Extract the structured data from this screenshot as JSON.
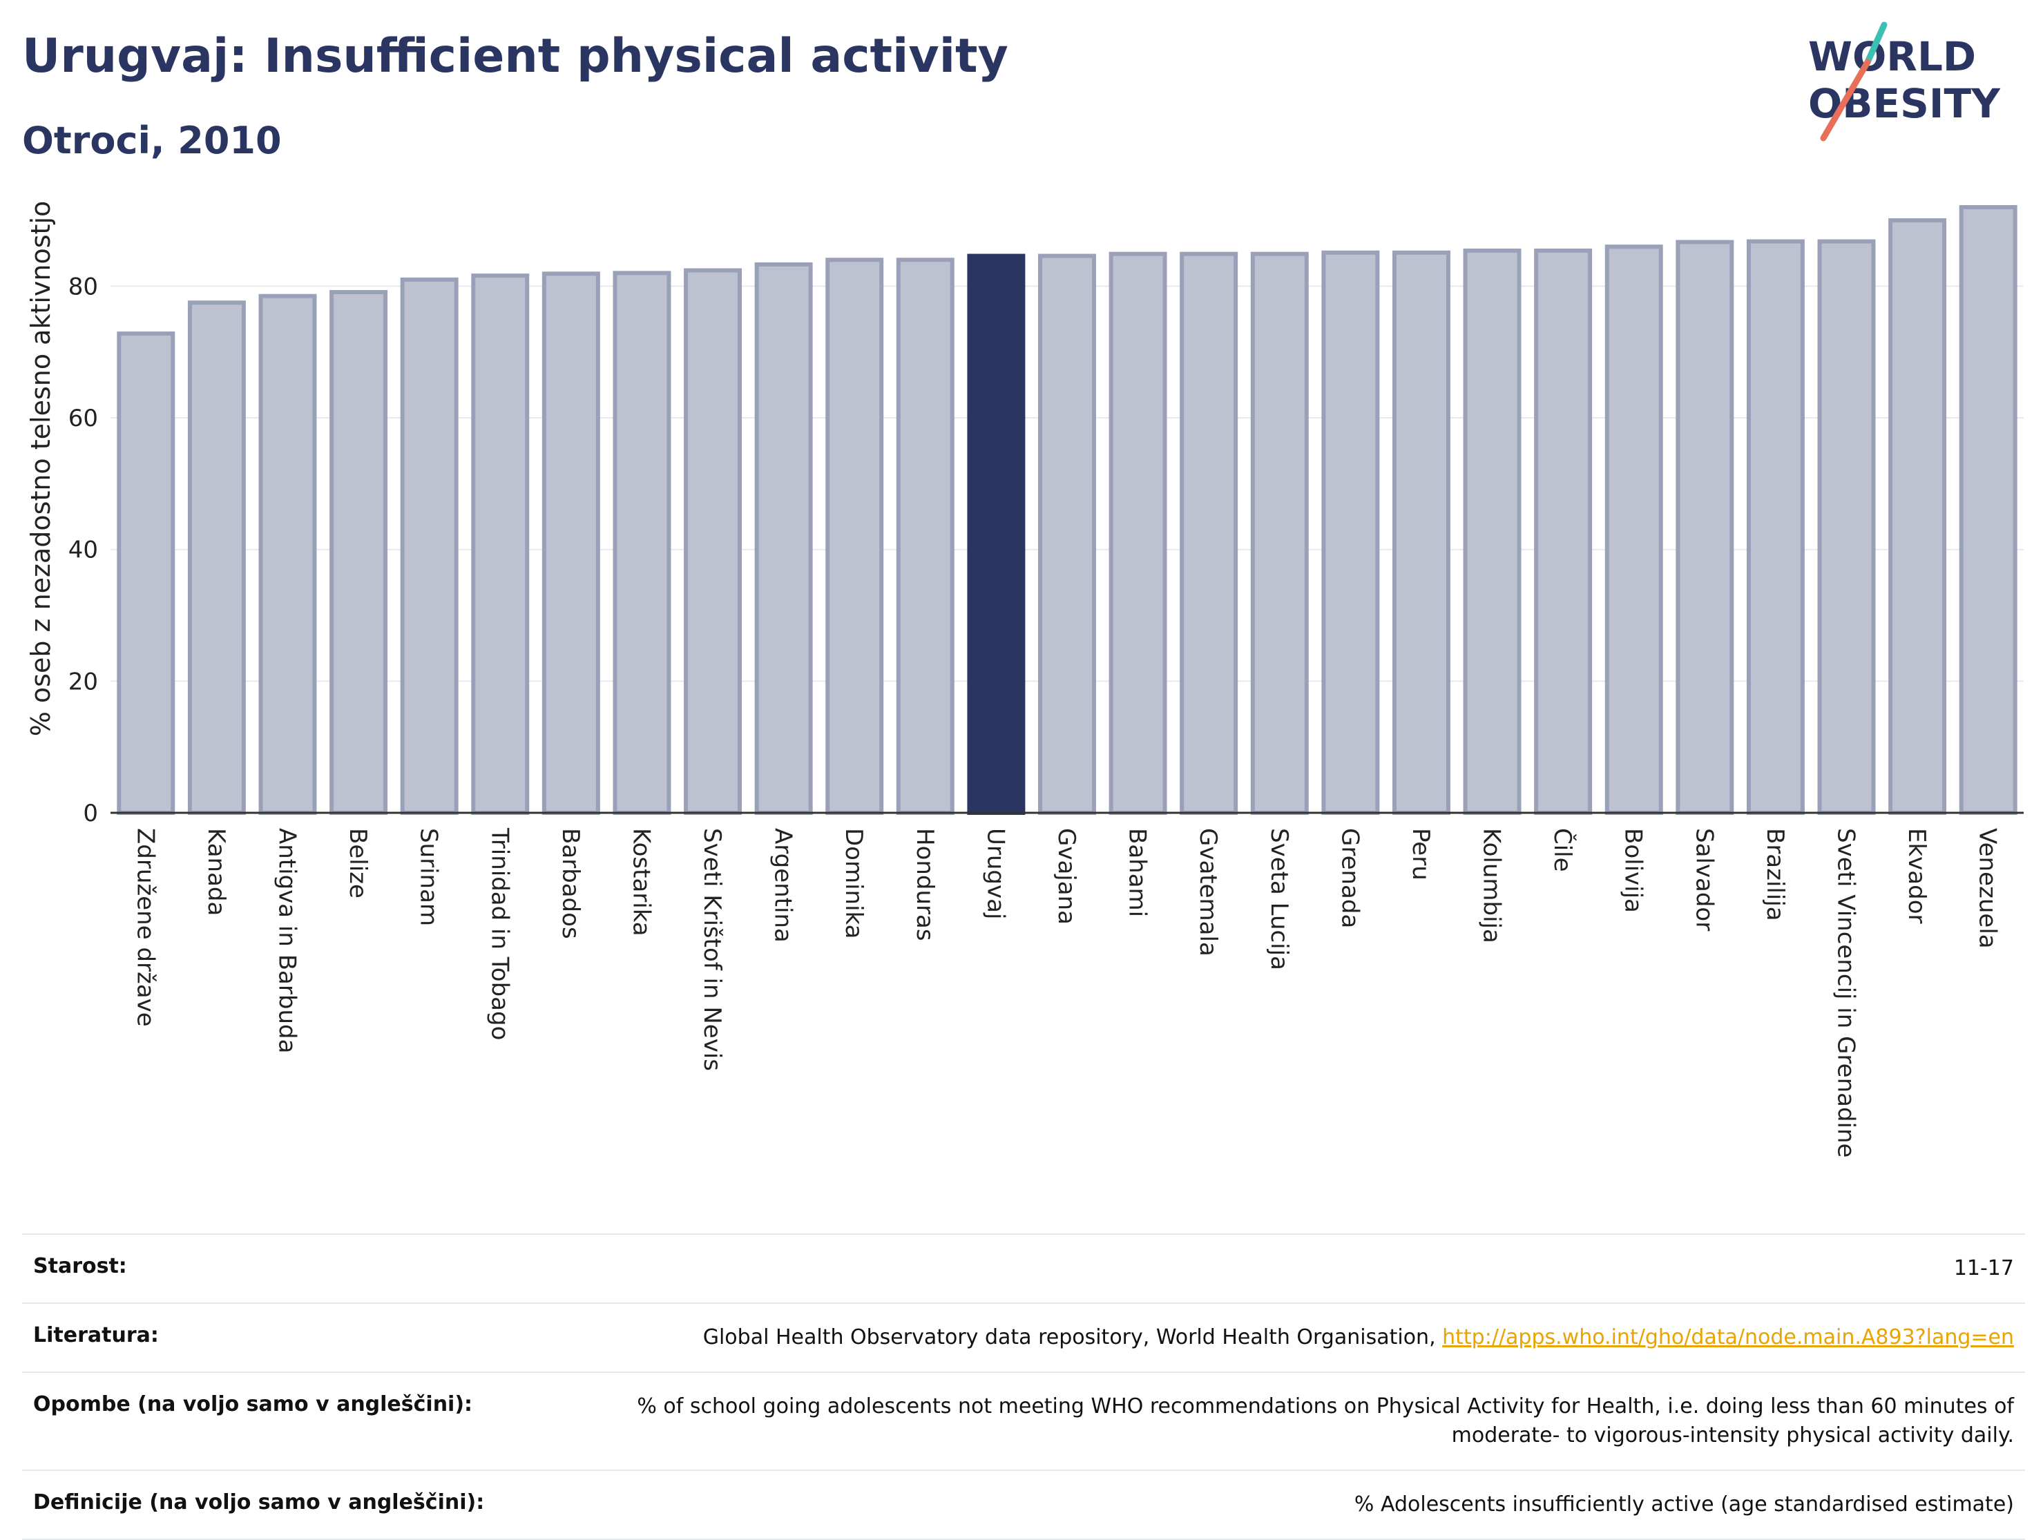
{
  "header": {
    "title": "Urugvaj: Insufficient physical activity",
    "subtitle": "Otroci, 2010"
  },
  "logo": {
    "line1": "WORLD",
    "line2": "OBESITY",
    "icon": "world-obesity-logo"
  },
  "colors": {
    "bar": "#bec2d0",
    "bar_stroke": "#9aa0b8",
    "highlight": "#2b3562",
    "text": "#2b3562"
  },
  "chart_data": {
    "type": "bar",
    "ylabel": "% oseb z nezadostno telesno aktivnostjo",
    "ylim": [
      0,
      92
    ],
    "yticks": [
      0,
      20,
      40,
      60,
      80
    ],
    "highlight": "Urugvaj",
    "grid": true,
    "categories": [
      "Združene države",
      "Kanada",
      "Antigva in Barbuda",
      "Belize",
      "Surinam",
      "Trinidad in Tobago",
      "Barbados",
      "Kostarika",
      "Sveti Krištof in Nevis",
      "Argentina",
      "Dominika",
      "Honduras",
      "Urugvaj",
      "Gvajana",
      "Bahami",
      "Gvatemala",
      "Sveta Lucija",
      "Grenada",
      "Peru",
      "Kolumbija",
      "Čile",
      "Bolivija",
      "Salvador",
      "Brazilija",
      "Sveti Vincencij in Grenadine",
      "Ekvador",
      "Venezuela"
    ],
    "values": [
      72.8,
      77.5,
      78.5,
      79.1,
      81.0,
      81.6,
      81.9,
      82.0,
      82.4,
      83.3,
      84.0,
      84.0,
      84.6,
      84.6,
      84.9,
      84.9,
      84.9,
      85.1,
      85.1,
      85.4,
      85.4,
      86.0,
      86.7,
      86.8,
      86.8,
      90.0,
      92.0
    ]
  },
  "info": {
    "age_label": "Starost:",
    "age_value": "11-17",
    "lit_label": "Literatura:",
    "lit_text": "Global Health Observatory data repository, World Health Organisation, ",
    "lit_link": "http://apps.who.int/gho/data/node.main.A893?lang=en",
    "notes_label": "Opombe (na voljo samo v angleščini):",
    "notes_value": "% of school going adolescents not meeting WHO recommendations on Physical Activity for Health, i.e. doing less than 60 minutes of moderate- to vigorous-intensity physical activity daily.",
    "def_label": "Definicije (na voljo samo v angleščini):",
    "def_value": "% Adolescents insufficiently active (age standardised estimate)"
  }
}
